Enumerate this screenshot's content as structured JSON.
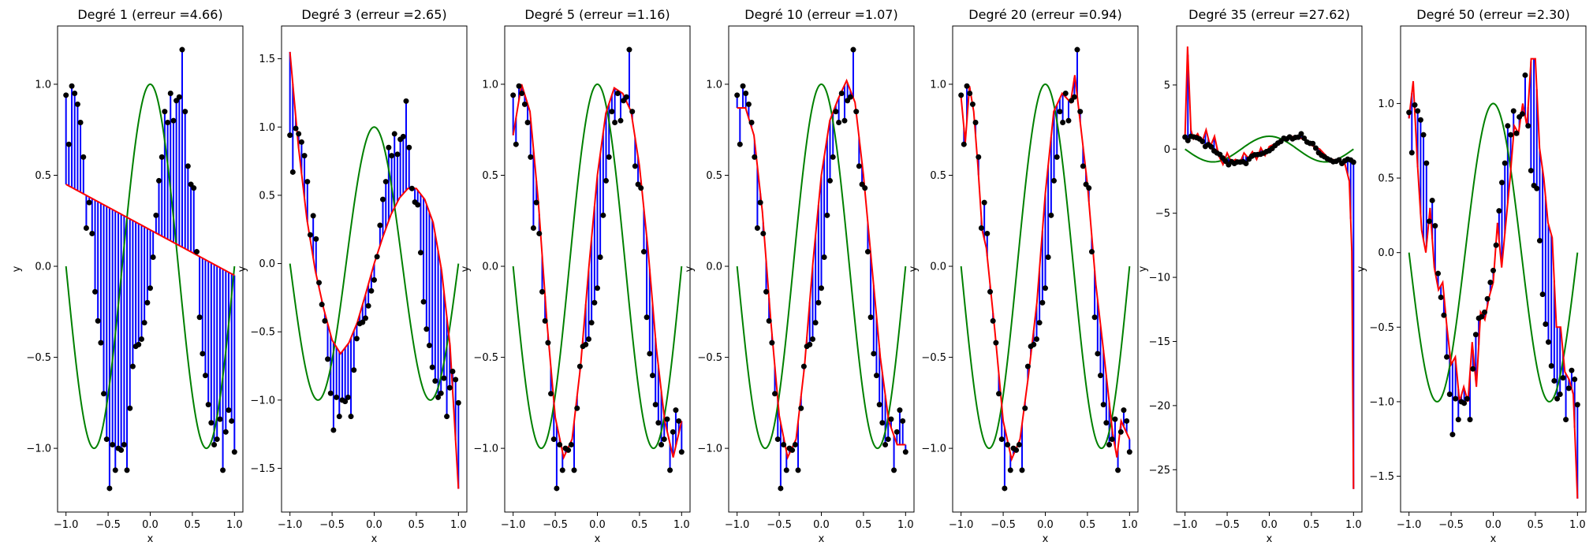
{
  "chart_data": [
    {
      "type": "line",
      "title": "Degré 1 (erreur =4.66)",
      "xlabel": "x",
      "ylabel": "y",
      "xlim": [
        -1.1,
        1.1
      ],
      "ylim": [
        -1.35,
        1.32
      ],
      "xticks": [
        -1.0,
        -0.5,
        0.0,
        0.5,
        1.0
      ],
      "xtick_labels": [
        "−1.0",
        "−0.5",
        "0.0",
        "0.5",
        "1.0"
      ],
      "yticks": [
        -1.0,
        -0.5,
        0.0,
        0.5,
        1.0
      ],
      "ytick_labels": [
        "−1.0",
        "−0.5",
        "0.0",
        "0.5",
        "1.0"
      ],
      "model": {
        "name": "",
        "color": "#ff0000",
        "coef": [
          0.2,
          -0.25
        ]
      }
    },
    {
      "type": "line",
      "title": "Degré 3 (erreur =2.65)",
      "xlabel": "x",
      "ylabel": "y",
      "xlim": [
        -1.1,
        1.1
      ],
      "ylim": [
        -1.82,
        1.74
      ],
      "xticks": [
        -1.0,
        -0.5,
        0.0,
        0.5,
        1.0
      ],
      "xtick_labels": [
        "−1.0",
        "−0.5",
        "0.0",
        "0.5",
        "1.0"
      ],
      "yticks": [
        -1.5,
        -1.0,
        -0.5,
        0.0,
        0.5,
        1.0,
        1.5
      ],
      "ytick_labels": [
        "−1.5",
        "−1.0",
        "−0.5",
        "0.0",
        "0.5",
        "1.0",
        "1.5"
      ],
      "model": {
        "name": "",
        "color": "#ff0000",
        "x": [
          -1.0,
          -0.9,
          -0.8,
          -0.7,
          -0.6,
          -0.5,
          -0.4,
          -0.3,
          -0.2,
          -0.1,
          0.0,
          0.1,
          0.2,
          0.3,
          0.4,
          0.5,
          0.6,
          0.7,
          0.8,
          0.9,
          1.0
        ],
        "y": [
          1.55,
          0.86,
          0.33,
          -0.05,
          -0.33,
          -0.56,
          -0.66,
          -0.58,
          -0.43,
          -0.22,
          0.0,
          0.19,
          0.36,
          0.48,
          0.55,
          0.55,
          0.47,
          0.3,
          -0.05,
          -0.6,
          -1.65
        ]
      }
    },
    {
      "type": "line",
      "title": "Degré 5 (erreur =1.16)",
      "xlabel": "x",
      "ylabel": "y",
      "xlim": [
        -1.1,
        1.1
      ],
      "ylim": [
        -1.35,
        1.32
      ],
      "xticks": [
        -1.0,
        -0.5,
        0.0,
        0.5,
        1.0
      ],
      "xtick_labels": [
        "−1.0",
        "−0.5",
        "0.0",
        "0.5",
        "1.0"
      ],
      "yticks": [
        -1.0,
        -0.5,
        0.0,
        0.5,
        1.0
      ],
      "ytick_labels": [
        "−1.0",
        "−0.5",
        "0.0",
        "0.5",
        "1.0"
      ],
      "model": {
        "name": "",
        "color": "#ff0000",
        "x": [
          -1.0,
          -0.9,
          -0.8,
          -0.7,
          -0.6,
          -0.5,
          -0.4,
          -0.3,
          -0.2,
          -0.1,
          0.0,
          0.1,
          0.2,
          0.3,
          0.4,
          0.5,
          0.6,
          0.7,
          0.8,
          0.9,
          1.0
        ],
        "y": [
          0.72,
          1.0,
          0.85,
          0.35,
          -0.3,
          -0.83,
          -1.05,
          -0.95,
          -0.55,
          0.0,
          0.5,
          0.84,
          0.98,
          0.95,
          0.85,
          0.55,
          0.1,
          -0.45,
          -0.85,
          -1.05,
          -0.85
        ]
      }
    },
    {
      "type": "line",
      "title": "Degré 10 (erreur =1.07)",
      "xlabel": "x",
      "ylabel": "y",
      "xlim": [
        -1.1,
        1.1
      ],
      "ylim": [
        -1.35,
        1.32
      ],
      "xticks": [
        -1.0,
        -0.5,
        0.0,
        0.5,
        1.0
      ],
      "xtick_labels": [
        "−1.0",
        "−0.5",
        "0.0",
        "0.5",
        "1.0"
      ],
      "yticks": [
        -1.0,
        -0.5,
        0.0,
        0.5,
        1.0
      ],
      "ytick_labels": [
        "−1.0",
        "−0.5",
        "0.0",
        "0.5",
        "1.0"
      ],
      "model": {
        "name": "",
        "color": "#ff0000",
        "x": [
          -1.0,
          -0.9,
          -0.8,
          -0.7,
          -0.6,
          -0.5,
          -0.4,
          -0.3,
          -0.2,
          -0.1,
          0.0,
          0.1,
          0.2,
          0.3,
          0.4,
          0.5,
          0.6,
          0.7,
          0.8,
          0.9,
          1.0
        ],
        "y": [
          0.87,
          0.87,
          0.72,
          0.3,
          -0.3,
          -0.82,
          -1.05,
          -0.95,
          -0.55,
          0.02,
          0.5,
          0.8,
          0.92,
          1.02,
          0.9,
          0.5,
          0.0,
          -0.5,
          -0.85,
          -0.98,
          -0.98
        ]
      }
    },
    {
      "type": "line",
      "title": "Degré 20 (erreur =0.94)",
      "xlabel": "x",
      "ylabel": "y",
      "xlim": [
        -1.1,
        1.1
      ],
      "ylim": [
        -1.35,
        1.32
      ],
      "xticks": [
        -1.0,
        -0.5,
        0.0,
        0.5,
        1.0
      ],
      "xtick_labels": [
        "−1.0",
        "−0.5",
        "0.0",
        "0.5",
        "1.0"
      ],
      "yticks": [
        -1.0,
        -0.5,
        0.0,
        0.5,
        1.0
      ],
      "ytick_labels": [
        "−1.0",
        "−0.5",
        "0.0",
        "0.5",
        "1.0"
      ],
      "model": {
        "name": "",
        "color": "#ff0000",
        "x": [
          -1.0,
          -0.95,
          -0.9,
          -0.85,
          -0.8,
          -0.75,
          -0.7,
          -0.6,
          -0.5,
          -0.4,
          -0.3,
          -0.2,
          -0.1,
          0.0,
          0.1,
          0.2,
          0.3,
          0.35,
          0.4,
          0.5,
          0.6,
          0.7,
          0.8,
          0.85,
          0.9,
          1.0
        ],
        "y": [
          0.93,
          0.68,
          0.99,
          0.85,
          0.55,
          0.2,
          0.1,
          -0.35,
          -0.85,
          -1.06,
          -0.95,
          -0.6,
          -0.2,
          0.4,
          0.85,
          0.95,
          0.9,
          1.05,
          0.85,
          0.45,
          -0.1,
          -0.5,
          -0.92,
          -1.05,
          -0.85,
          -0.95
        ]
      }
    },
    {
      "type": "line",
      "title": "Degré 35 (erreur =27.62)",
      "xlabel": "x",
      "ylabel": "y",
      "xlim": [
        -1.1,
        1.1
      ],
      "ylim": [
        -28.3,
        9.6
      ],
      "xticks": [
        -1.0,
        -0.5,
        0.0,
        0.5,
        1.0
      ],
      "xtick_labels": [
        "−1.0",
        "−0.5",
        "0.0",
        "0.5",
        "1.0"
      ],
      "yticks": [
        -25,
        -20,
        -15,
        -10,
        -5,
        0,
        5
      ],
      "ytick_labels": [
        "−25",
        "−20",
        "−15",
        "−10",
        "−5",
        "0",
        "5"
      ],
      "model": {
        "name": "",
        "color": "#ff0000",
        "x": [
          -1.0,
          -0.97,
          -0.93,
          -0.9,
          -0.85,
          -0.8,
          -0.75,
          -0.7,
          -0.65,
          -0.6,
          -0.55,
          -0.5,
          -0.45,
          -0.4,
          -0.35,
          -0.3,
          -0.25,
          -0.2,
          -0.15,
          -0.1,
          -0.05,
          0.0,
          0.1,
          0.2,
          0.3,
          0.4,
          0.5,
          0.6,
          0.7,
          0.8,
          0.9,
          0.95,
          0.98,
          1.0
        ],
        "y": [
          1.0,
          8.0,
          1.5,
          0.8,
          1.2,
          0.5,
          1.5,
          0.2,
          1.0,
          -0.5,
          -1.2,
          -0.3,
          -1.0,
          -0.8,
          -1.1,
          -0.3,
          -0.7,
          -0.2,
          -0.8,
          0.1,
          -0.5,
          0.2,
          0.5,
          0.9,
          1.0,
          0.8,
          0.3,
          0.0,
          -0.7,
          -0.9,
          -1.2,
          -2.5,
          -8.0,
          -26.5
        ]
      }
    },
    {
      "type": "line",
      "title": "Degré 50 (erreur =2.30)",
      "xlabel": "x",
      "ylabel": "y",
      "xlim": [
        -1.1,
        1.1
      ],
      "ylim": [
        -1.74,
        1.52
      ],
      "xticks": [
        -1.0,
        -0.5,
        0.0,
        0.5,
        1.0
      ],
      "xtick_labels": [
        "−1.0",
        "−0.5",
        "0.0",
        "0.5",
        "1.0"
      ],
      "yticks": [
        -1.5,
        -1.0,
        -0.5,
        0.0,
        0.5,
        1.0
      ],
      "ytick_labels": [
        "−1.5",
        "−1.0",
        "−0.5",
        "0.0",
        "0.5",
        "1.0"
      ],
      "model": {
        "name": "",
        "color": "#ff0000",
        "x": [
          -1.0,
          -0.95,
          -0.9,
          -0.85,
          -0.8,
          -0.75,
          -0.7,
          -0.65,
          -0.6,
          -0.55,
          -0.5,
          -0.45,
          -0.4,
          -0.35,
          -0.3,
          -0.25,
          -0.2,
          -0.15,
          -0.1,
          -0.05,
          0.0,
          0.05,
          0.1,
          0.15,
          0.2,
          0.25,
          0.3,
          0.35,
          0.4,
          0.45,
          0.5,
          0.55,
          0.6,
          0.65,
          0.7,
          0.75,
          0.8,
          0.85,
          0.9,
          0.95,
          1.0
        ],
        "y": [
          0.9,
          1.15,
          0.6,
          0.15,
          0.0,
          0.3,
          -0.1,
          -0.25,
          -0.2,
          -0.5,
          -0.75,
          -0.7,
          -1.0,
          -0.9,
          -1.0,
          -0.6,
          -0.9,
          -0.4,
          -0.45,
          -0.3,
          -0.2,
          0.2,
          -0.1,
          0.2,
          0.5,
          0.85,
          0.8,
          1.0,
          0.85,
          1.3,
          1.3,
          0.7,
          0.5,
          0.2,
          0.1,
          -0.5,
          -0.5,
          -0.8,
          -0.85,
          -0.95,
          -1.65
        ]
      }
    }
  ],
  "shared": {
    "true_function": {
      "name": "",
      "color": "#008000",
      "formula": "cos(1.5*pi*x)"
    },
    "samples": {
      "color": "#000000",
      "x": [
        -1.0,
        -0.966,
        -0.931,
        -0.897,
        -0.862,
        -0.828,
        -0.793,
        -0.759,
        -0.724,
        -0.69,
        -0.655,
        -0.621,
        -0.586,
        -0.552,
        -0.517,
        -0.483,
        -0.448,
        -0.414,
        -0.379,
        -0.345,
        -0.31,
        -0.276,
        -0.241,
        -0.207,
        -0.172,
        -0.138,
        -0.103,
        -0.069,
        -0.034,
        0.0,
        0.034,
        0.069,
        0.103,
        0.138,
        0.172,
        0.207,
        0.241,
        0.276,
        0.31,
        0.345,
        0.379,
        0.414,
        0.448,
        0.483,
        0.517,
        0.552,
        0.586,
        0.621,
        0.655,
        0.69,
        0.724,
        0.759,
        0.793,
        0.828,
        0.862,
        0.897,
        0.931,
        0.966,
        1.0
      ],
      "y": [
        0.94,
        0.67,
        0.99,
        0.95,
        0.89,
        0.79,
        0.6,
        0.21,
        0.35,
        0.18,
        -0.14,
        -0.3,
        -0.42,
        -0.7,
        -0.95,
        -1.22,
        -0.98,
        -1.12,
        -1.0,
        -1.01,
        -0.98,
        -1.12,
        -0.78,
        -0.55,
        -0.44,
        -0.43,
        -0.4,
        -0.31,
        -0.2,
        -0.12,
        0.05,
        0.28,
        0.47,
        0.6,
        0.85,
        0.79,
        0.95,
        0.8,
        0.91,
        0.93,
        1.19,
        0.85,
        0.55,
        0.45,
        0.43,
        0.08,
        -0.28,
        -0.48,
        -0.6,
        -0.76,
        -0.86,
        -0.98,
        -0.95,
        -0.84,
        -1.12,
        -0.91,
        -0.79,
        -0.85,
        -1.02
      ]
    },
    "residual_color": "#0000ff"
  }
}
